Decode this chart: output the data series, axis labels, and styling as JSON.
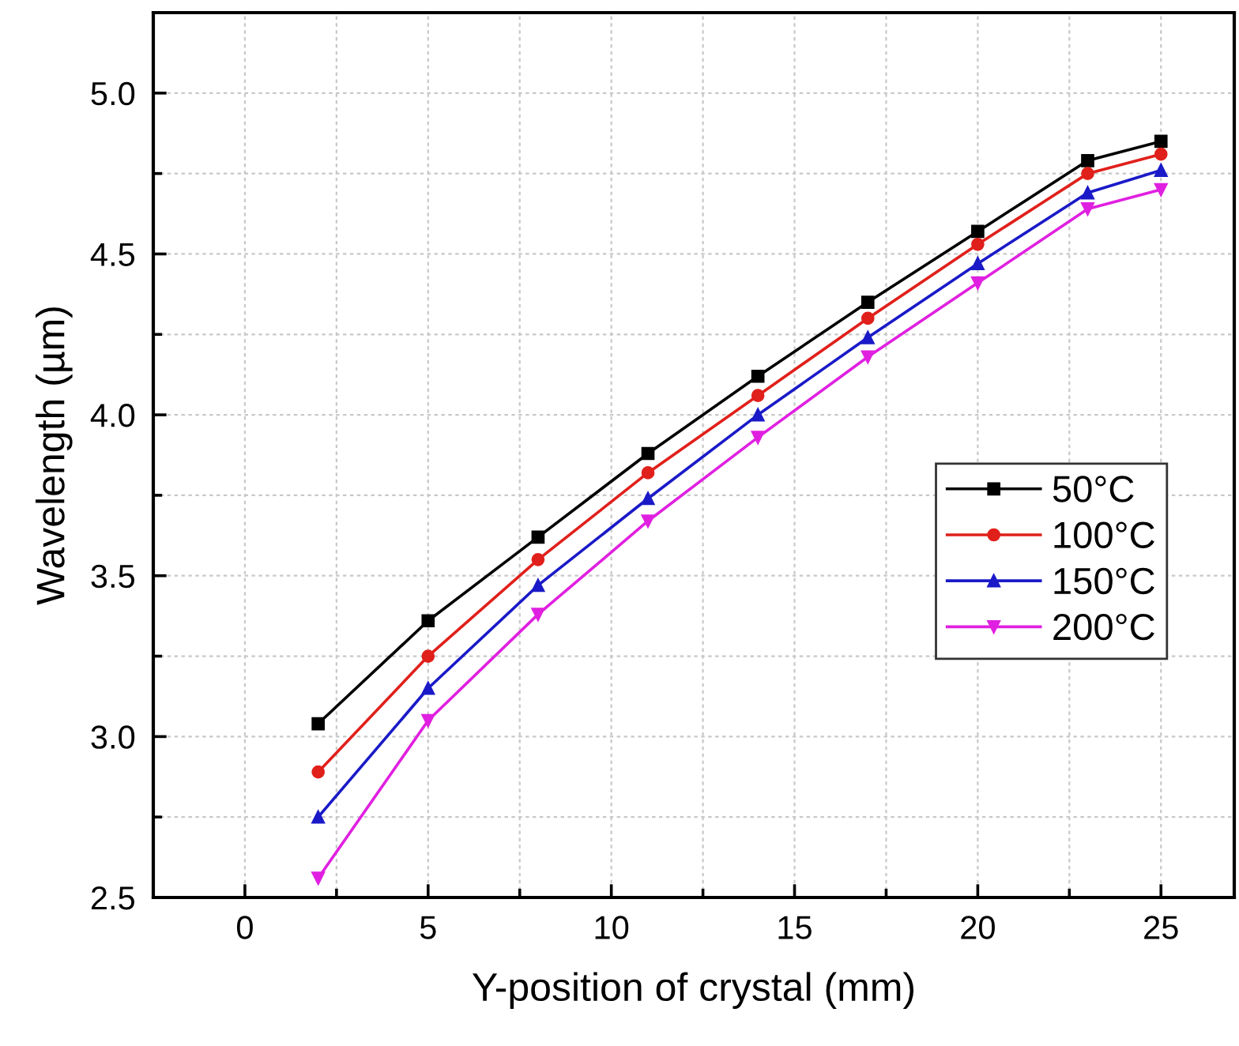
{
  "chart_data": {
    "type": "line",
    "xlabel": "Y-position of crystal (mm)",
    "ylabel": "Wavelength (µm)",
    "x": [
      2,
      5,
      8,
      11,
      14,
      17,
      20,
      23,
      25
    ],
    "series": [
      {
        "name": "50°C",
        "color": "#000000",
        "marker": "square",
        "values": [
          3.04,
          3.36,
          3.62,
          3.88,
          4.12,
          4.35,
          4.57,
          4.79,
          4.85
        ]
      },
      {
        "name": "100°C",
        "color": "#e0201b",
        "marker": "circle",
        "values": [
          2.89,
          3.25,
          3.55,
          3.82,
          4.06,
          4.3,
          4.53,
          4.75,
          4.81
        ]
      },
      {
        "name": "150°C",
        "color": "#1a1ac8",
        "marker": "triangle",
        "values": [
          2.75,
          3.15,
          3.47,
          3.74,
          4.0,
          4.24,
          4.47,
          4.69,
          4.76
        ]
      },
      {
        "name": "200°C",
        "color": "#e020e0",
        "marker": "triangle_down",
        "values": [
          2.56,
          3.05,
          3.38,
          3.67,
          3.93,
          4.18,
          4.41,
          4.64,
          4.7
        ]
      }
    ],
    "xlim": [
      -2.5,
      27
    ],
    "ylim": [
      2.5,
      5.25
    ],
    "xticks": [
      0,
      5,
      10,
      15,
      20,
      25
    ],
    "yticks": [
      {
        "value": 2.5,
        "label": "2.5"
      },
      {
        "value": 3.0,
        "label": "3.0"
      },
      {
        "value": 3.5,
        "label": "3.5"
      },
      {
        "value": 4.0,
        "label": "4.0"
      },
      {
        "value": 4.5,
        "label": "4.5"
      },
      {
        "value": 5.0,
        "label": "5.0"
      }
    ],
    "grid": true,
    "legend": "right",
    "line_style": "solid"
  }
}
